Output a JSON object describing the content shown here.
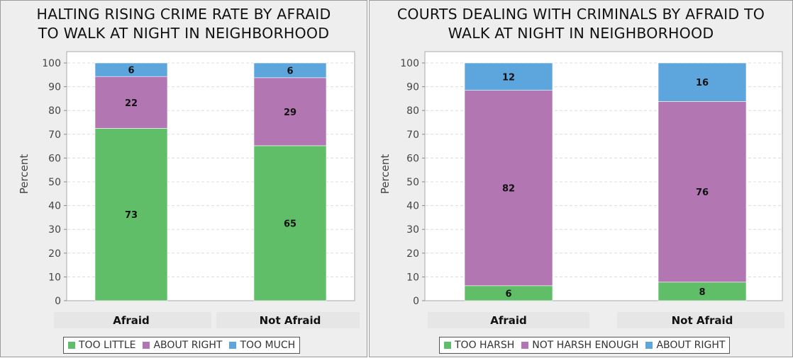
{
  "colors": {
    "green": "#60be68",
    "purple": "#b276b2",
    "blue": "#5ca6dd"
  },
  "chart_data": [
    {
      "type": "bar",
      "stacked": true,
      "title_lines": [
        "HALTING RISING CRIME RATE BY AFRAID",
        "TO WALK AT NIGHT IN NEIGHBORHOOD"
      ],
      "ylabel": "Percent",
      "ylim": [
        0,
        100
      ],
      "yticks": [
        "0",
        "10",
        "20",
        "30",
        "40",
        "50",
        "60",
        "70",
        "80",
        "90",
        "100"
      ],
      "grid": true,
      "legend_position": "bottom",
      "categories": [
        "Afraid",
        "Not Afraid"
      ],
      "series": [
        {
          "name": "TOO LITTLE",
          "color": "#60be68",
          "values": [
            72.5,
            65.2
          ],
          "labels": [
            "73",
            "65"
          ]
        },
        {
          "name": "ABOUT RIGHT",
          "color": "#b276b2",
          "values": [
            21.8,
            28.6
          ],
          "labels": [
            "22",
            "29"
          ]
        },
        {
          "name": "TOO MUCH",
          "color": "#5ca6dd",
          "values": [
            5.7,
            6.2
          ],
          "labels": [
            "6",
            "6"
          ]
        }
      ]
    },
    {
      "type": "bar",
      "stacked": true,
      "title_lines": [
        "COURTS DEALING WITH CRIMINALS BY AFRAID TO",
        "WALK AT NIGHT IN NEIGHBORHOOD"
      ],
      "ylabel": "Percent",
      "ylim": [
        0,
        100
      ],
      "yticks": [
        "0",
        "10",
        "20",
        "30",
        "40",
        "50",
        "60",
        "70",
        "80",
        "90",
        "100"
      ],
      "grid": true,
      "legend_position": "bottom",
      "categories": [
        "Afraid",
        "Not Afraid"
      ],
      "series": [
        {
          "name": "TOO HARSH",
          "color": "#60be68",
          "values": [
            6.3,
            7.8
          ],
          "labels": [
            "6",
            "8"
          ]
        },
        {
          "name": "NOT HARSH ENOUGH",
          "color": "#b276b2",
          "values": [
            82.2,
            76.0
          ],
          "labels": [
            "82",
            "76"
          ]
        },
        {
          "name": "ABOUT RIGHT",
          "color": "#5ca6dd",
          "values": [
            11.5,
            16.2
          ],
          "labels": [
            "12",
            "16"
          ]
        }
      ]
    }
  ]
}
